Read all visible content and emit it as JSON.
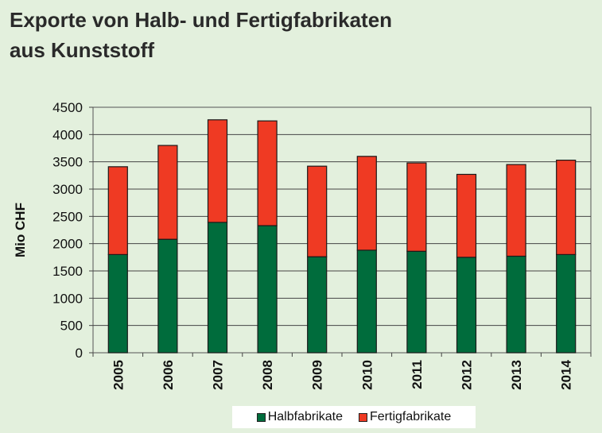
{
  "title_lines": [
    "Exporte von Halb- und Fertigfabrikaten",
    "aus Kunststoff"
  ],
  "chart_data": {
    "type": "bar",
    "stacked": true,
    "categories": [
      "2005",
      "2006",
      "2007",
      "2008",
      "2009",
      "2010",
      "2011",
      "2012",
      "2013",
      "2014"
    ],
    "series": [
      {
        "name": "Halbfabrikate",
        "color": "#006c3c",
        "values": [
          1800,
          2080,
          2390,
          2330,
          1760,
          1880,
          1860,
          1750,
          1770,
          1800
        ]
      },
      {
        "name": "Fertigfabrikate",
        "color": "#ef3a23",
        "values": [
          1610,
          1720,
          1880,
          1920,
          1660,
          1720,
          1620,
          1520,
          1680,
          1730
        ]
      }
    ],
    "ylabel": "Mio CHF",
    "xlabel": "",
    "ylim": [
      0,
      4500
    ],
    "yticks": [
      0,
      500,
      1000,
      1500,
      2000,
      2500,
      3000,
      3500,
      4000,
      4500
    ],
    "grid": true,
    "legend_position": "bottom"
  }
}
